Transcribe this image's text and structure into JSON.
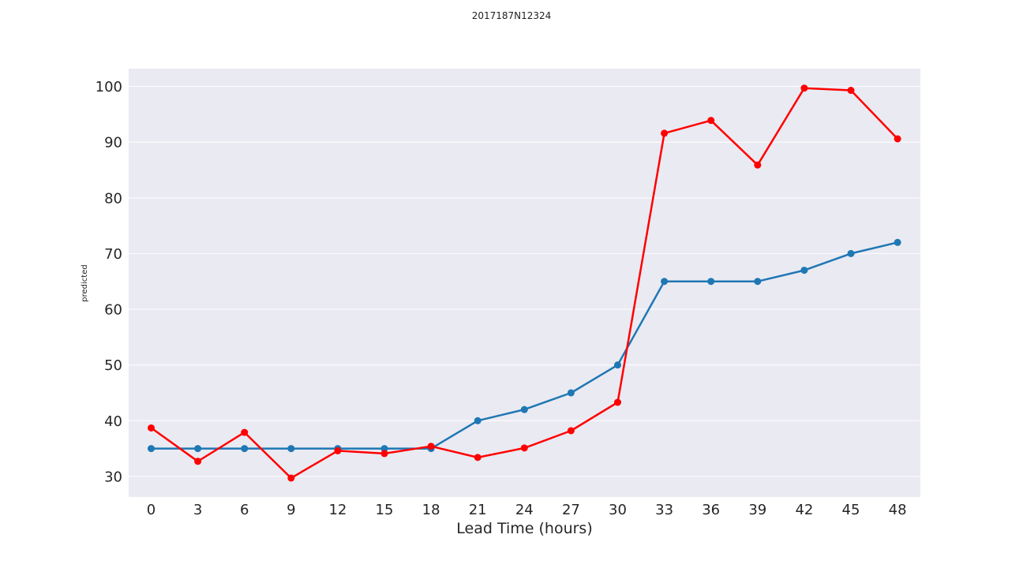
{
  "chart_data": {
    "type": "line",
    "title": "2017187N12324",
    "xlabel": "Lead Time (hours)",
    "ylabel": "predicted",
    "x": [
      0,
      3,
      6,
      9,
      12,
      15,
      18,
      21,
      24,
      27,
      30,
      33,
      36,
      39,
      42,
      45,
      48
    ],
    "x_ticks": [
      "0",
      "3",
      "6",
      "9",
      "12",
      "15",
      "18",
      "21",
      "24",
      "27",
      "30",
      "33",
      "36",
      "39",
      "42",
      "45",
      "48"
    ],
    "y_ticks": [
      30,
      40,
      50,
      60,
      70,
      80,
      90,
      100
    ],
    "ylim": [
      26.3,
      103.2
    ],
    "grid": true,
    "background": "#eaeaf2",
    "series": [
      {
        "color": "#1f77b4",
        "values": [
          35,
          35,
          35,
          35,
          35,
          35,
          35,
          40,
          42,
          45,
          50,
          65,
          65,
          65,
          67,
          70,
          72
        ]
      },
      {
        "color": "#ff0000",
        "values": [
          38.7,
          32.7,
          37.9,
          29.7,
          34.6,
          34.1,
          35.4,
          33.4,
          35.1,
          38.2,
          43.3,
          91.6,
          93.9,
          85.9,
          99.7,
          99.3,
          90.6
        ]
      }
    ]
  }
}
